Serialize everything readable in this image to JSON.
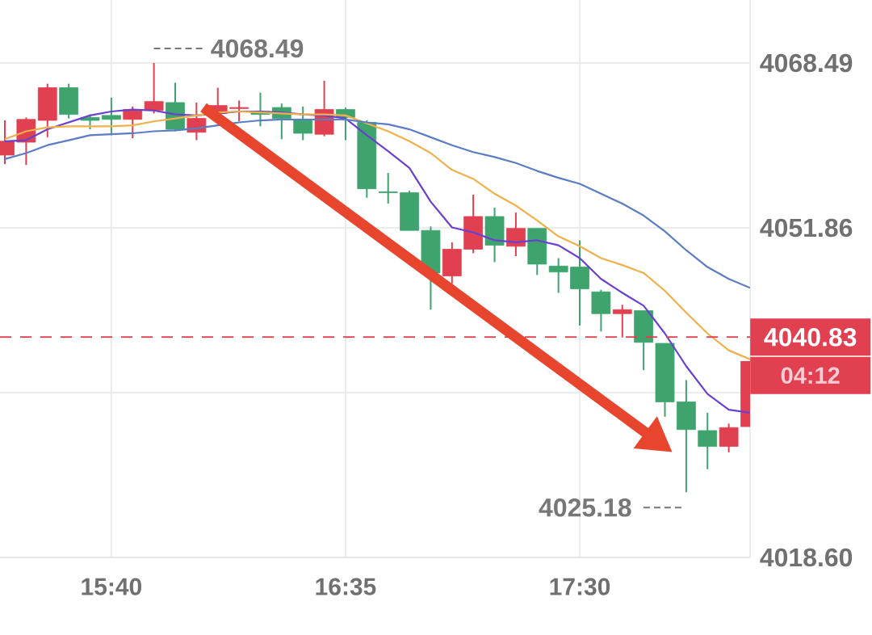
{
  "chart_data": {
    "type": "candlestick",
    "x": [
      15.25,
      15.3333,
      15.4167,
      15.5,
      15.5833,
      15.6667,
      15.75,
      15.8333,
      15.9167,
      16.0,
      16.0833,
      16.1667,
      16.25,
      16.3333,
      16.4167,
      16.5,
      16.5833,
      16.6667,
      16.75,
      16.8333,
      16.9167,
      17.0,
      17.0833,
      17.1667,
      17.25,
      17.3333,
      17.4167,
      17.5,
      17.5833,
      17.6667,
      17.75,
      17.8333,
      17.9167,
      18.0,
      18.0833,
      18.1667
    ],
    "ohlc": [
      [
        4059.2,
        4062.7,
        4058.3,
        4060.6
      ],
      [
        4060.5,
        4063.0,
        4058.2,
        4062.8
      ],
      [
        4062.7,
        4066.4,
        4061.0,
        4066.0
      ],
      [
        4066.0,
        4066.4,
        4062.9,
        4063.3
      ],
      [
        4063.0,
        4063.3,
        4061.8,
        4062.7
      ],
      [
        4063.2,
        4065.0,
        4061.2,
        4062.8
      ],
      [
        4062.8,
        4064.1,
        4060.9,
        4063.8
      ],
      [
        4063.7,
        4068.49,
        4063.4,
        4064.6
      ],
      [
        4064.5,
        4066.5,
        4061.6,
        4061.8
      ],
      [
        4061.5,
        4064.5,
        4060.7,
        4062.9
      ],
      [
        4063.4,
        4066.0,
        4062.8,
        4064.2
      ],
      [
        4063.9,
        4064.7,
        4062.6,
        4064.0
      ],
      [
        4063.6,
        4065.5,
        4062.1,
        4063.3
      ],
      [
        4064.0,
        4064.4,
        4060.8,
        4062.9
      ],
      [
        4062.8,
        4064.1,
        4060.7,
        4061.4
      ],
      [
        4061.3,
        4066.7,
        4061.1,
        4063.8
      ],
      [
        4063.8,
        4064.0,
        4060.7,
        4063.0
      ],
      [
        4062.5,
        4062.7,
        4054.9,
        4055.8
      ],
      [
        4055.5,
        4057.4,
        4054.3,
        4055.4
      ],
      [
        4055.4,
        4055.6,
        4051.6,
        4051.6
      ],
      [
        4051.6,
        4052.0,
        4043.6,
        4047.3
      ],
      [
        4047.0,
        4050.4,
        4046.2,
        4049.7
      ],
      [
        4049.7,
        4055.2,
        4049.3,
        4053.0
      ],
      [
        4053.0,
        4053.9,
        4048.4,
        4050.1
      ],
      [
        4050.0,
        4053.4,
        4049.0,
        4051.8
      ],
      [
        4051.8,
        4051.8,
        4047.1,
        4048.2
      ],
      [
        4048.0,
        4048.8,
        4045.3,
        4047.4
      ],
      [
        4047.9,
        4050.6,
        4042.0,
        4045.7
      ],
      [
        4045.4,
        4045.6,
        4041.4,
        4043.2
      ],
      [
        4043.2,
        4044.1,
        4040.8,
        4043.6
      ],
      [
        4043.5,
        4043.5,
        4037.5,
        4040.3
      ],
      [
        4040.2,
        4040.2,
        4032.8,
        4034.3
      ],
      [
        4034.3,
        4036.5,
        4025.18,
        4031.5
      ],
      [
        4031.4,
        4033.2,
        4027.5,
        4029.8
      ],
      [
        4029.8,
        4032.1,
        4029.2,
        4031.7
      ],
      [
        4031.8,
        4038.4,
        4031.8,
        4038.4
      ]
    ],
    "colors": [
      "#e0404f",
      "#e0404f",
      "#e0404f",
      "#3fa36e",
      "#3fa36e",
      "#3fa36e",
      "#e0404f",
      "#e0404f",
      "#3fa36e",
      "#e0404f",
      "#e0404f",
      "#e0404f",
      "#3fa36e",
      "#3fa36e",
      "#3fa36e",
      "#e0404f",
      "#3fa36e",
      "#3fa36e",
      "#3fa36e",
      "#3fa36e",
      "#3fa36e",
      "#e0404f",
      "#e0404f",
      "#3fa36e",
      "#e0404f",
      "#3fa36e",
      "#3fa36e",
      "#3fa36e",
      "#3fa36e",
      "#e0404f",
      "#3fa36e",
      "#3fa36e",
      "#3fa36e",
      "#3fa36e",
      "#e0404f",
      "#e0404f"
    ],
    "series": [
      {
        "type": "line",
        "color": "#6a40d0",
        "values": [
          4060.6,
          4060.7,
          4061.8,
          4062.5,
          4063.2,
          4063.6,
          4063.8,
          4063.7,
          4063.3,
          4063.2,
          4063.4,
          4063.6,
          4063.6,
          4063.5,
          4063.3,
          4063.2,
          4062.9,
          4061.2,
          4059.6,
          4057.9,
          4054.5,
          4051.9,
          4051.4,
          4050.6,
          4050.4,
          4050.6,
          4050.1,
          4048.8,
          4046.7,
          4045.3,
          4044.0,
          4041.2,
          4037.9,
          4035.1,
          4033.5,
          4033.2
        ]
      },
      {
        "type": "line",
        "color": "#f0b04a",
        "values": [
          4060.8,
          4061.6,
          4062.0,
          4062.1,
          4062.1,
          4062.1,
          4062.2,
          4062.6,
          4062.9,
          4063.2,
          4063.5,
          4063.6,
          4063.5,
          4063.4,
          4063.3,
          4063.3,
          4063.2,
          4062.4,
          4061.6,
          4060.6,
          4059.4,
          4057.7,
          4056.8,
          4055.3,
          4054.1,
          4052.6,
          4051.0,
          4050.0,
          4048.8,
          4048.1,
          4047.3,
          4045.5,
          4043.3,
          4041.2,
          4039.5,
          4038.6
        ]
      },
      {
        "type": "line",
        "color": "#5a7dc6",
        "values": [
          4058.8,
          4059.4,
          4060.2,
          4060.7,
          4061.2,
          4061.3,
          4061.4,
          4061.6,
          4061.7,
          4061.9,
          4062.2,
          4062.5,
          4062.7,
          4062.8,
          4062.8,
          4062.8,
          4062.8,
          4062.5,
          4062.3,
          4061.8,
          4061.0,
          4060.2,
          4059.5,
          4059.0,
          4058.4,
          4057.6,
          4056.9,
          4056.3,
          4055.3,
          4054.3,
          4053.1,
          4051.5,
          4049.6,
          4047.9,
          4046.7,
          4045.8
        ]
      }
    ],
    "xlim": [
      15.231,
      18.1667
    ],
    "xticks": [
      {
        "value": 15.6667,
        "label": "15:40"
      },
      {
        "value": 16.5833,
        "label": "16:35"
      },
      {
        "value": 17.5,
        "label": "17:30"
      }
    ],
    "ylim": [
      4018.6,
      4074.85
    ],
    "yticks": [
      4068.49,
      4051.86,
      {
        "value": 4035.23,
        "label": null
      },
      {
        "value": 4018.6,
        "label": "4018.60"
      }
    ],
    "grid": true,
    "ref_lines": [
      {
        "axis": "y",
        "value": 4040.83,
        "label": "4040.83",
        "color": "#e0404f",
        "line_style": "dashed"
      }
    ],
    "annotations": [
      {
        "text": "4068.49",
        "x": 15.8333,
        "y": 4068.49
      },
      {
        "text": "4025.18",
        "x": 17.9167,
        "y": 4025.18
      },
      "04:12"
    ]
  }
}
